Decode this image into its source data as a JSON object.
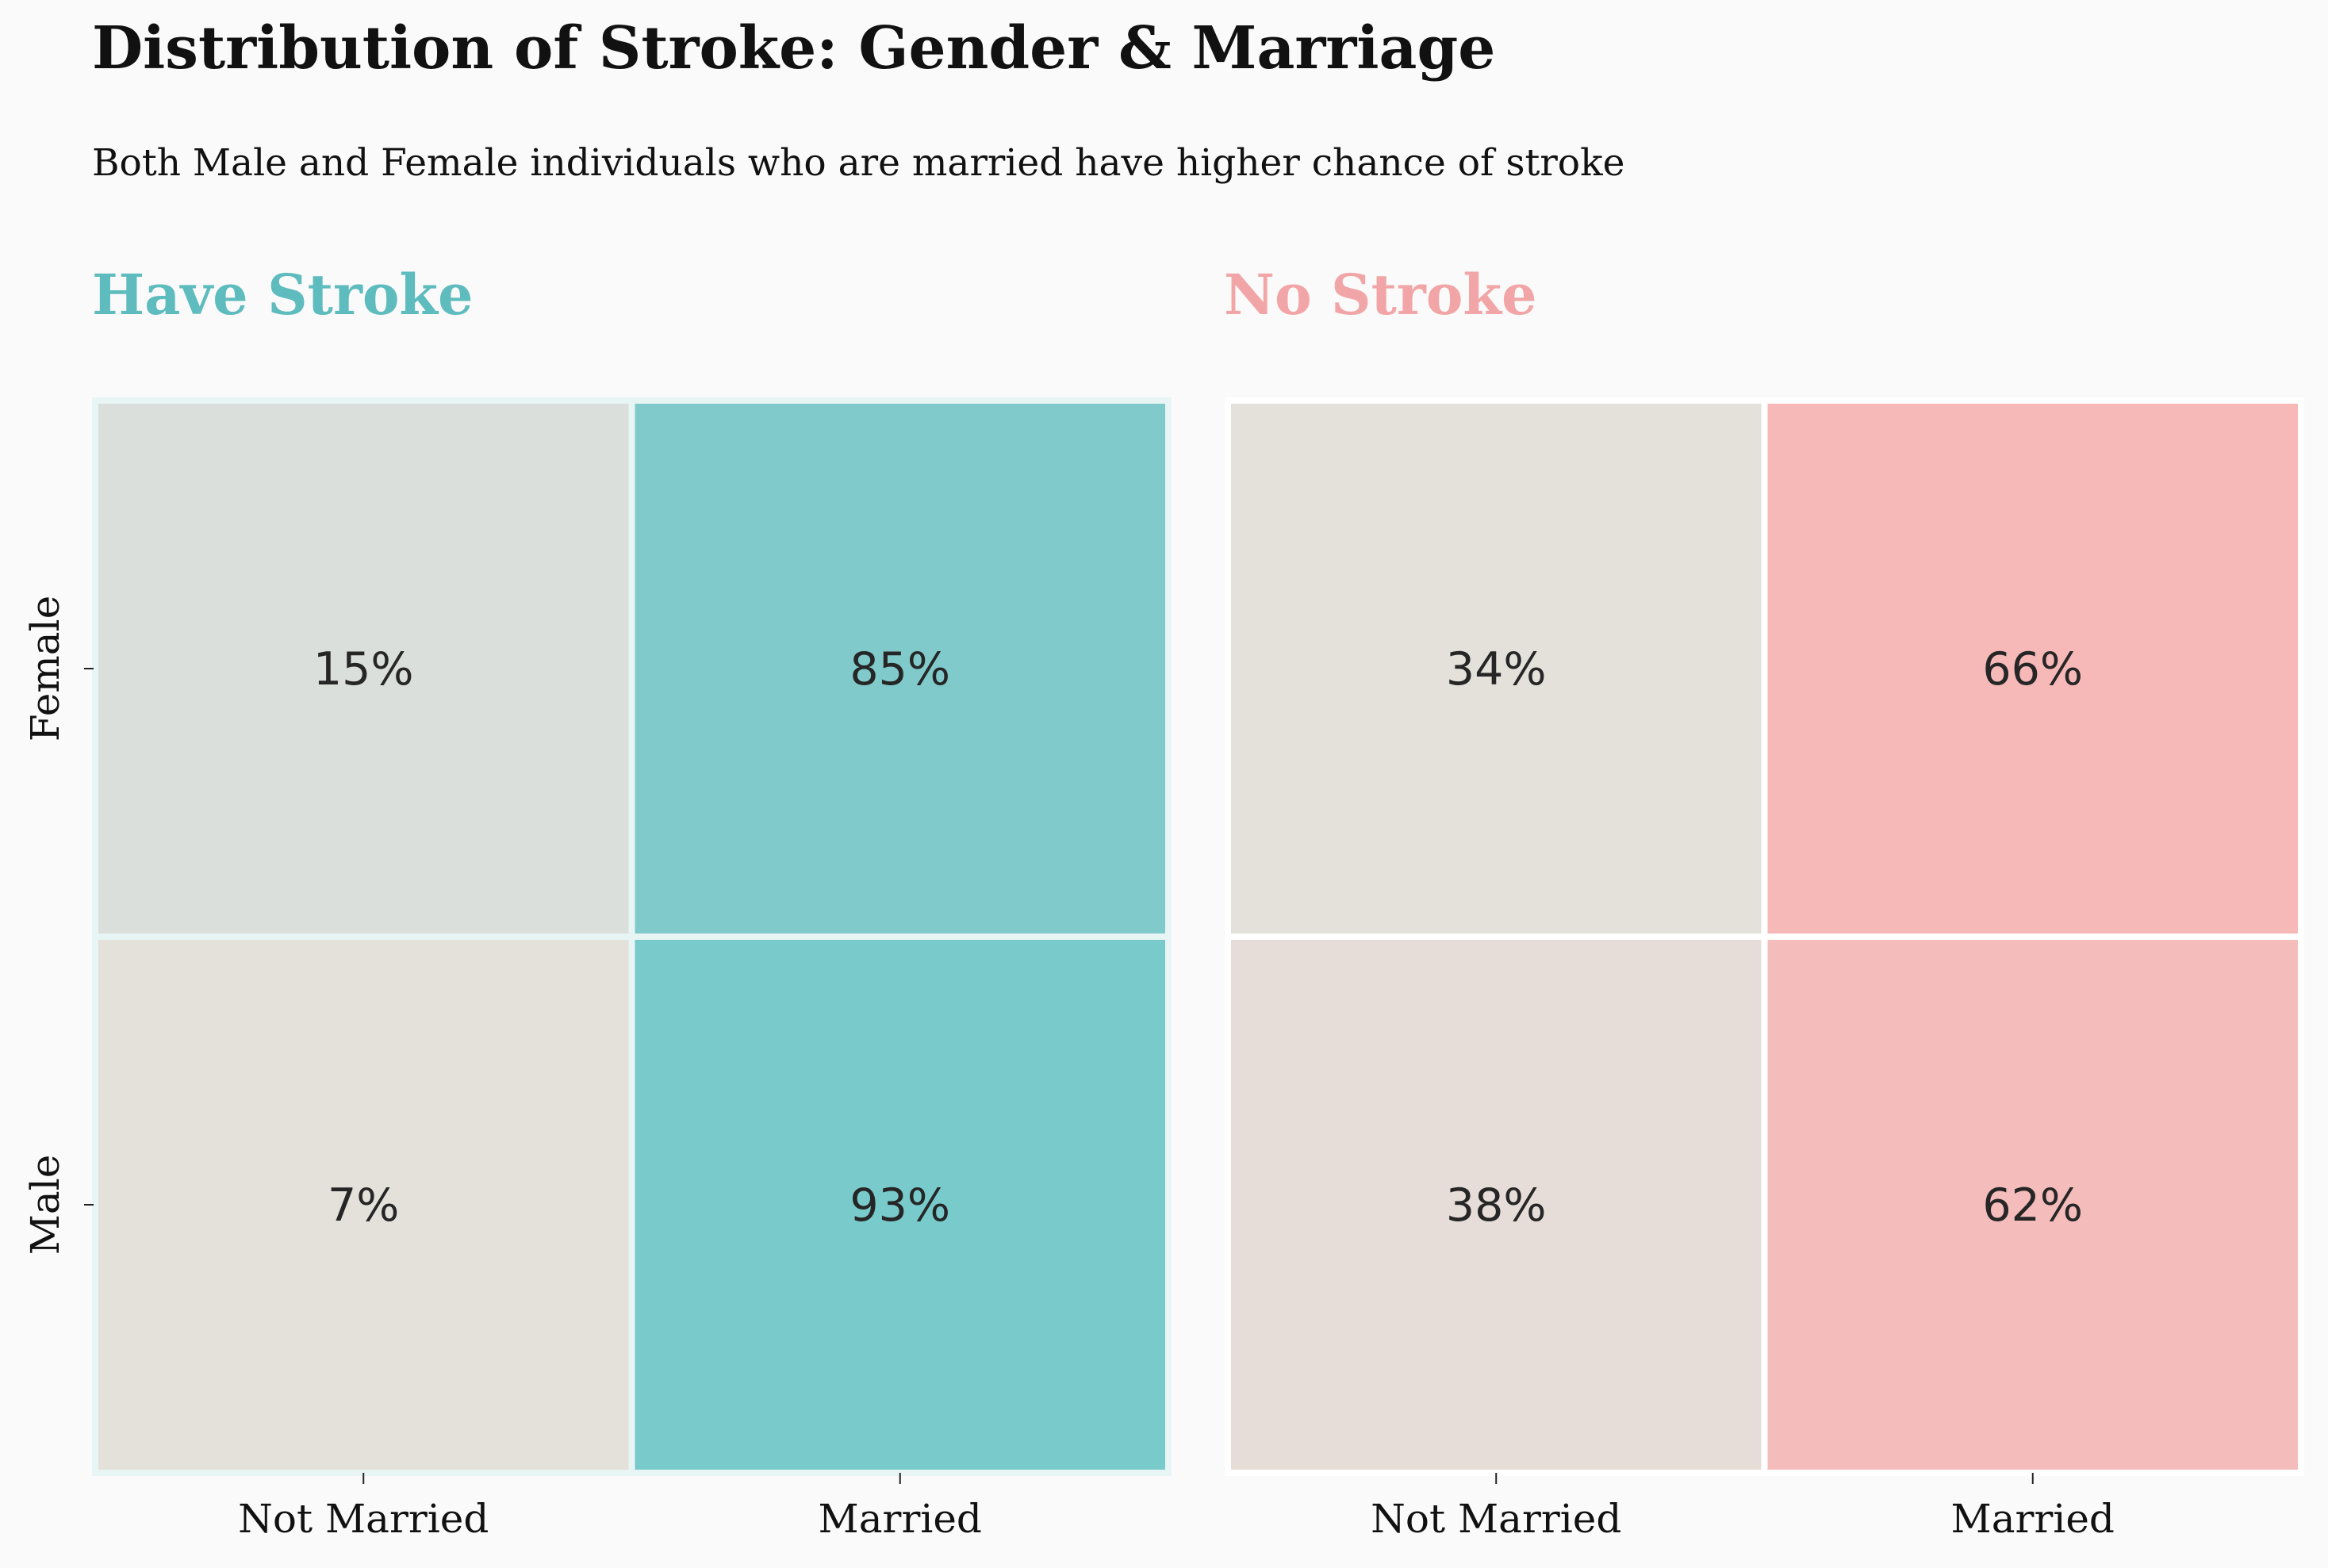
{
  "title": "Distribution of Stroke: Gender & Marriage",
  "subtitle": "Both Male and Female individuals who are married have higher chance of stroke",
  "colors": {
    "background": "#fafafa",
    "stroke_accent": "#5fbcbe",
    "no_stroke_accent": "#f2a5a6",
    "cell_border": "#ffffff"
  },
  "chart_data": [
    {
      "type": "heatmap",
      "title": "Have Stroke",
      "title_color": "#5fbcbe",
      "rows": [
        "Female",
        "Male"
      ],
      "cols": [
        "Not Married",
        "Married"
      ],
      "values": [
        [
          15,
          85
        ],
        [
          7,
          93
        ]
      ],
      "labels": [
        [
          "15%",
          "85%"
        ],
        [
          "7%",
          "93%"
        ]
      ],
      "cell_colors": [
        [
          "#dbdfdb",
          "#81cacc"
        ],
        [
          "#e4e0da",
          "#78cacb"
        ]
      ],
      "border_color": "#e8f5f5"
    },
    {
      "type": "heatmap",
      "title": "No Stroke",
      "title_color": "#f2a5a6",
      "rows": [
        "Female",
        "Male"
      ],
      "cols": [
        "Not Married",
        "Married"
      ],
      "values": [
        [
          34,
          66
        ],
        [
          38,
          62
        ]
      ],
      "labels": [
        [
          "34%",
          "66%"
        ],
        [
          "38%",
          "62%"
        ]
      ],
      "cell_colors": [
        [
          "#e4e0da",
          "#f7b8b8"
        ],
        [
          "#e6ddd8",
          "#f4bcbb"
        ]
      ],
      "border_color": "#ffffff"
    }
  ]
}
